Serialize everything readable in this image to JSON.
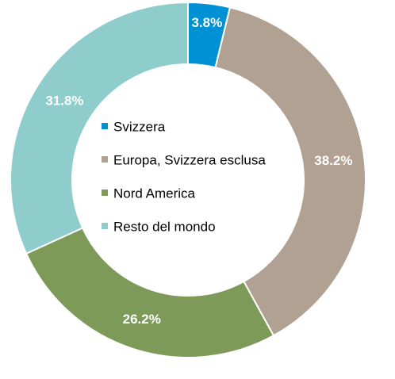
{
  "chart_data": {
    "type": "pie",
    "donut": true,
    "categories": [
      "Svizzera",
      "Europa, Svizzera esclusa",
      "Nord America",
      "Resto del mondo"
    ],
    "values": [
      3.8,
      38.2,
      26.2,
      31.8
    ],
    "data_labels": [
      "3.8%",
      "38.2%",
      "26.2%",
      "31.8%"
    ],
    "colors": [
      "#0091d5",
      "#b0a193",
      "#7e9a59",
      "#8ecdcb"
    ],
    "legend_position": "center",
    "title": ""
  }
}
